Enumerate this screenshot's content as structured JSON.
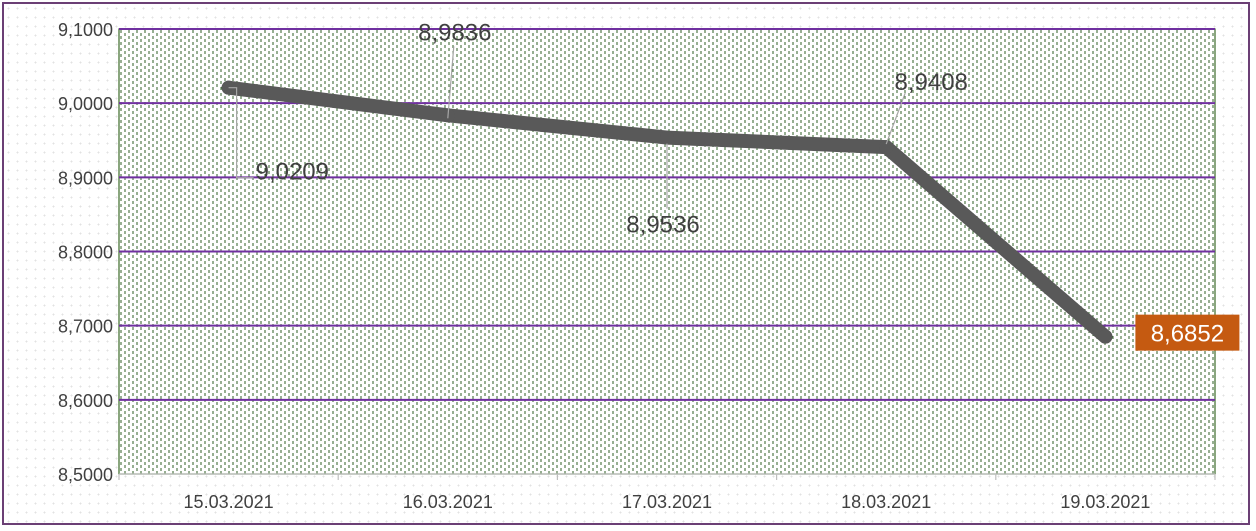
{
  "chart_data": {
    "type": "line",
    "categories": [
      "15.03.2021",
      "16.03.2021",
      "17.03.2021",
      "18.03.2021",
      "19.03.2021"
    ],
    "series": [
      {
        "values": [
          9.0209,
          8.9836,
          8.9536,
          8.9408,
          8.6852
        ]
      }
    ],
    "data_labels": [
      "9,0209",
      "8,9836",
      "8,9536",
      "8,9408",
      "8,6852"
    ],
    "y_tick_labels": [
      "9,1000",
      "9,0000",
      "8,9000",
      "8,8000",
      "8,7000",
      "8,6000",
      "8,5000"
    ],
    "y_ticks": [
      9.1,
      9.0,
      8.9,
      8.8,
      8.7,
      8.6,
      8.5
    ],
    "ylim": [
      8.5,
      9.1
    ],
    "grid": true,
    "title": "",
    "xlabel": "",
    "ylabel": ""
  },
  "colors": {
    "line": "#595959",
    "gridline": "#7030a0",
    "plot_border": "#3d6b2a",
    "pattern": "#2f5f24",
    "highlight_label_bg": "#c55a11",
    "frame_border": "#6b3f75"
  }
}
